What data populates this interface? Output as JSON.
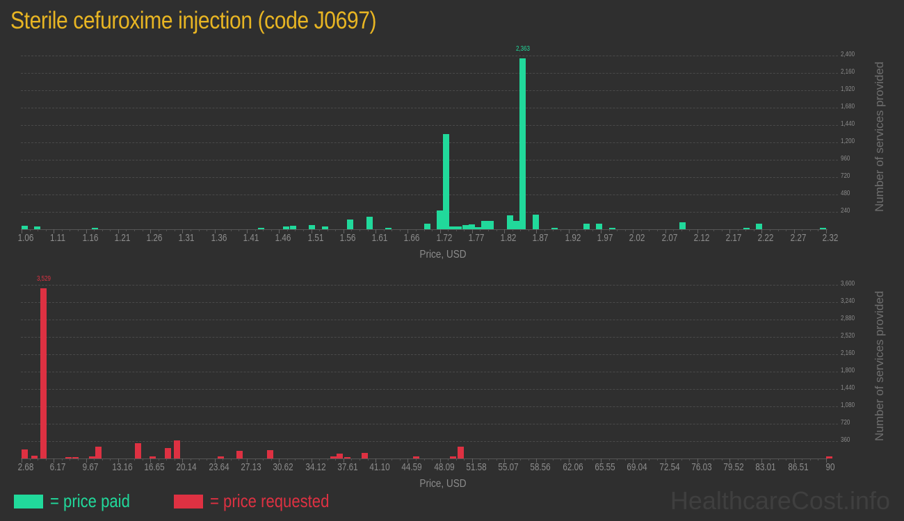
{
  "title": "Sterile cefuroxime injection (code J0697)",
  "colors": {
    "paid": "#21d99b",
    "requested": "#de3142",
    "title": "#e8b523"
  },
  "legend": {
    "paid": "= price paid",
    "requested": "= price requested"
  },
  "watermark": "HealthcareCost.info",
  "chart_data": [
    {
      "type": "bar",
      "name": "price paid",
      "xlabel": "Price, USD",
      "ylabel": "Number of services provided",
      "x_ticks": [
        "1.06",
        "1.11",
        "1.16",
        "1.21",
        "1.26",
        "1.31",
        "1.36",
        "1.41",
        "1.46",
        "1.51",
        "1.56",
        "1.61",
        "1.66",
        "1.72",
        "1.77",
        "1.82",
        "1.87",
        "1.92",
        "1.97",
        "2.02",
        "2.07",
        "2.12",
        "2.17",
        "2.22",
        "2.27",
        "2.32"
      ],
      "y_ticks": [
        "240",
        "480",
        "720",
        "960",
        "1,200",
        "1,440",
        "1,680",
        "1,920",
        "2,160",
        "2,400"
      ],
      "ylim": [
        0,
        2400
      ],
      "xlim": [
        1.06,
        2.32
      ],
      "peak_label": "2,363",
      "x": [
        1.06,
        1.08,
        1.17,
        1.43,
        1.47,
        1.48,
        1.51,
        1.53,
        1.57,
        1.6,
        1.63,
        1.69,
        1.71,
        1.72,
        1.73,
        1.74,
        1.75,
        1.76,
        1.77,
        1.78,
        1.79,
        1.82,
        1.83,
        1.84,
        1.86,
        1.89,
        1.94,
        1.96,
        1.98,
        2.09,
        2.19,
        2.21,
        2.31
      ],
      "values": [
        50,
        40,
        15,
        20,
        40,
        50,
        60,
        40,
        130,
        170,
        20,
        80,
        260,
        1320,
        40,
        35,
        55,
        65,
        30,
        120,
        120,
        190,
        120,
        2363,
        200,
        15,
        80,
        80,
        20,
        100,
        15,
        80,
        15
      ]
    },
    {
      "type": "bar",
      "name": "price requested",
      "xlabel": "Price, USD",
      "ylabel": "Number of services provided",
      "x_ticks": [
        "2.68",
        "6.17",
        "9.67",
        "13.16",
        "16.65",
        "20.14",
        "23.64",
        "27.13",
        "30.62",
        "34.12",
        "37.61",
        "41.10",
        "44.59",
        "48.09",
        "51.58",
        "55.07",
        "58.56",
        "62.06",
        "65.55",
        "69.04",
        "72.54",
        "76.03",
        "79.52",
        "83.01",
        "86.51",
        "90"
      ],
      "y_ticks": [
        "360",
        "720",
        "1,080",
        "1,440",
        "1,800",
        "2,160",
        "2,520",
        "2,880",
        "3,240",
        "3,600"
      ],
      "ylim": [
        0,
        3600
      ],
      "xlim": [
        2.68,
        90
      ],
      "peak_label": "3,529",
      "x": [
        2.68,
        3.7,
        4.7,
        7.4,
        8.2,
        10.0,
        10.7,
        15.0,
        16.6,
        18.2,
        19.2,
        24.0,
        26.0,
        29.3,
        36.2,
        36.9,
        37.7,
        39.6,
        45.2,
        49.2,
        50.0,
        90
      ],
      "values": [
        190,
        60,
        3529,
        20,
        30,
        50,
        240,
        310,
        40,
        210,
        370,
        40,
        160,
        180,
        50,
        100,
        20,
        120,
        50,
        50,
        250,
        50
      ]
    }
  ]
}
